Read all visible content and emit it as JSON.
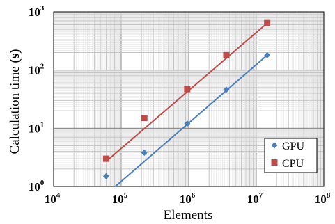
{
  "chart_data": {
    "type": "scatter",
    "xscale": "log",
    "yscale": "log",
    "xlim": [
      10000,
      100000000
    ],
    "ylim": [
      1,
      1000
    ],
    "xlabel": "Elements",
    "ylabel_main": "Calculation time ",
    "ylabel_bold": "(s)",
    "x_ticks": [
      {
        "base": "10",
        "exp": "4",
        "value": 10000
      },
      {
        "base": "10",
        "exp": "5",
        "value": 100000
      },
      {
        "base": "10",
        "exp": "6",
        "value": 1000000
      },
      {
        "base": "10",
        "exp": "7",
        "value": 10000000
      },
      {
        "base": "10",
        "exp": "8",
        "value": 100000000
      }
    ],
    "y_ticks": [
      {
        "base": "10",
        "exp": "0",
        "value": 1
      },
      {
        "base": "10",
        "exp": "1",
        "value": 10
      },
      {
        "base": "10",
        "exp": "2",
        "value": 100
      },
      {
        "base": "10",
        "exp": "3",
        "value": 1000
      }
    ],
    "grid": true,
    "legend_position": "bottom-right",
    "series": [
      {
        "name": "GPU",
        "color": "#4a7ebb",
        "marker": "diamond",
        "x": [
          60000,
          220000,
          950000,
          3600000,
          14500000
        ],
        "y": [
          1.5,
          3.8,
          12,
          46,
          180
        ],
        "trendline": [
          [
            82000,
            1.0
          ],
          [
            14500000,
            180
          ]
        ]
      },
      {
        "name": "CPU",
        "color": "#be4b48",
        "marker": "square",
        "x": [
          60000,
          220000,
          950000,
          3600000,
          14500000
        ],
        "y": [
          3.0,
          15,
          47,
          180,
          640
        ],
        "trendline": [
          [
            60000,
            2.7
          ],
          [
            14500000,
            640
          ]
        ]
      }
    ]
  }
}
